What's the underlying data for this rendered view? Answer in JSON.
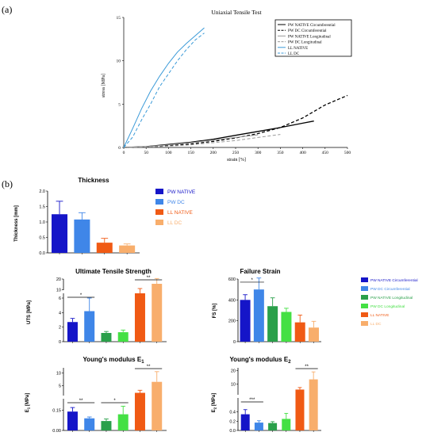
{
  "panel_labels": {
    "a": "(a)",
    "b": "(b)"
  },
  "colors": {
    "pw_native": "#1515c8",
    "pw_dc": "#3f86e8",
    "pw_native_long": "#2aa04a",
    "pw_dc_long": "#44e044",
    "ll_native": "#f05a14",
    "ll_dc": "#f8ae6c",
    "ll_curve": "#3a9ad8",
    "pw_curve": "#000000",
    "long_curve": "#9a9a9a"
  },
  "chart_data": [
    {
      "id": "tensile",
      "type": "line",
      "title": "Uniaxial Tensile Test",
      "xlabel": "strain [%]",
      "ylabel": "stress [MPa]",
      "xlim": [
        0,
        500
      ],
      "ylim": [
        0,
        15
      ],
      "xticks": [
        0,
        50,
        100,
        150,
        200,
        250,
        300,
        350,
        400,
        450,
        500
      ],
      "yticks": [
        0,
        5,
        10,
        15
      ],
      "legend_position": "top-right",
      "series": [
        {
          "name": "PW NATIVE Circumferential",
          "style": "solid",
          "color_key": "pw_curve",
          "x": [
            0,
            50,
            100,
            150,
            200,
            250,
            300,
            350,
            400,
            425
          ],
          "y": [
            0,
            0.1,
            0.35,
            0.6,
            0.95,
            1.4,
            1.85,
            2.3,
            2.8,
            3.05
          ]
        },
        {
          "name": "PW DC Circumferential",
          "style": "dashed",
          "color_key": "pw_curve",
          "x": [
            0,
            50,
            100,
            150,
            200,
            250,
            300,
            350,
            400,
            450,
            500
          ],
          "y": [
            0,
            0.05,
            0.2,
            0.4,
            0.7,
            1.1,
            1.6,
            2.3,
            3.4,
            4.9,
            6.0
          ]
        },
        {
          "name": "PW NATIVE Longitudinal",
          "style": "solid",
          "color_key": "long_curve",
          "x": [
            0,
            50,
            100,
            150,
            200,
            250,
            300
          ],
          "y": [
            0,
            0.1,
            0.3,
            0.55,
            0.85,
            1.15,
            1.45
          ]
        },
        {
          "name": "PW DC Longitudinal",
          "style": "dashed",
          "color_key": "long_curve",
          "x": [
            0,
            50,
            100,
            150,
            200,
            250,
            300,
            350
          ],
          "y": [
            0,
            0.05,
            0.15,
            0.3,
            0.55,
            0.8,
            1.15,
            1.5
          ]
        },
        {
          "name": "LL NATIVE",
          "style": "solid",
          "color_key": "ll_curve",
          "x": [
            0,
            20,
            40,
            60,
            80,
            100,
            120,
            140,
            160,
            180
          ],
          "y": [
            0,
            2.2,
            4.5,
            6.5,
            8.2,
            9.7,
            11.0,
            12.0,
            12.9,
            13.8
          ]
        },
        {
          "name": "LL DC",
          "style": "dashed",
          "color_key": "ll_curve",
          "x": [
            0,
            20,
            40,
            60,
            80,
            100,
            120,
            140,
            160,
            180
          ],
          "y": [
            0,
            1.2,
            3.2,
            5.0,
            7.0,
            8.5,
            10.0,
            11.3,
            12.4,
            13.2
          ]
        }
      ]
    },
    {
      "id": "thickness",
      "type": "bar",
      "title": "Thickness",
      "ylabel": "Thickness [mm]",
      "ylim": [
        0,
        2.0
      ],
      "yticks": [
        "0.0",
        "0.5",
        "1.0",
        "1.5",
        "2.0"
      ],
      "legend": [
        {
          "label": "PW NATIVE",
          "color_key": "pw_native"
        },
        {
          "label": "PW DC",
          "color_key": "pw_dc"
        },
        {
          "label": "LL NATIVE",
          "color_key": "ll_native"
        },
        {
          "label": "LL DC",
          "color_key": "ll_dc"
        }
      ],
      "bars": [
        {
          "color_key": "pw_native",
          "value": 1.25,
          "err": 0.42
        },
        {
          "color_key": "pw_dc",
          "value": 1.08,
          "err": 0.22
        },
        {
          "color_key": "ll_native",
          "value": 0.33,
          "err": 0.14
        },
        {
          "color_key": "ll_dc",
          "value": 0.24,
          "err": 0.05
        }
      ]
    },
    {
      "id": "uts",
      "type": "bar",
      "title": "Ultimate Tensile Strength",
      "ylabel": "UTS [MPa]",
      "broken_axis": true,
      "lower_range": [
        0,
        6
      ],
      "upper_range": [
        8,
        20
      ],
      "lower_ticks": [
        "0",
        "2",
        "4",
        "6"
      ],
      "upper_ticks": [
        "10",
        "20"
      ],
      "bars": [
        {
          "color_key": "pw_native",
          "value": 2.7,
          "err": 0.5
        },
        {
          "color_key": "pw_dc",
          "value": 4.2,
          "err": 1.8
        },
        {
          "color_key": "pw_native_long",
          "value": 1.2,
          "err": 0.2
        },
        {
          "color_key": "pw_dc_long",
          "value": 1.3,
          "err": 0.3
        },
        {
          "color_key": "ll_native",
          "value": 6.5,
          "err": 4.5
        },
        {
          "color_key": "ll_dc",
          "value": 15.5,
          "err": 5.0
        }
      ],
      "significance": [
        {
          "from": 0,
          "to": 1,
          "label": "*",
          "level": "low"
        },
        {
          "from": 4,
          "to": 5,
          "label": "**",
          "level": "high"
        }
      ]
    },
    {
      "id": "failure_strain",
      "type": "bar",
      "title": "Failure Strain",
      "ylabel": "FS [%]",
      "ylim": [
        0,
        600
      ],
      "yticks": [
        "0",
        "200",
        "400",
        "600"
      ],
      "legend": [
        {
          "label": "PW NATIVE Circumferential",
          "color_key": "pw_native"
        },
        {
          "label": "PW DC Circumferential",
          "color_key": "pw_dc"
        },
        {
          "label": "PW NATIVE Longitudinal",
          "color_key": "pw_native_long"
        },
        {
          "label": "PW DC Longitudinal",
          "color_key": "pw_dc_long"
        },
        {
          "label": "LL NATIVE",
          "color_key": "ll_native"
        },
        {
          "label": "LL DC",
          "color_key": "ll_dc"
        }
      ],
      "bars": [
        {
          "color_key": "pw_native",
          "value": 400,
          "err": 50
        },
        {
          "color_key": "pw_dc",
          "value": 500,
          "err": 110
        },
        {
          "color_key": "pw_native_long",
          "value": 340,
          "err": 80
        },
        {
          "color_key": "pw_dc_long",
          "value": 285,
          "err": 35
        },
        {
          "color_key": "ll_native",
          "value": 185,
          "err": 70
        },
        {
          "color_key": "ll_dc",
          "value": 135,
          "err": 60
        }
      ],
      "significance": [
        {
          "from": 0,
          "to": 1,
          "label": "*",
          "y": 570
        }
      ]
    },
    {
      "id": "youngs_e1",
      "type": "bar",
      "title": "Young's modulus  E",
      "title_sub": "1",
      "ylabel": "E",
      "ylabel_sub": "1",
      "ylabel_unit": " [MPa]",
      "broken_axis": true,
      "lower_range": [
        0,
        0.2
      ],
      "upper_range": [
        0.5,
        12
      ],
      "lower_ticks": [
        "0.00",
        "0.15"
      ],
      "upper_ticks": [
        "5",
        "10"
      ],
      "bars": [
        {
          "color_key": "pw_native",
          "value": 0.14,
          "err": 0.03
        },
        {
          "color_key": "pw_dc",
          "value": 0.09,
          "err": 0.01
        },
        {
          "color_key": "pw_native_long",
          "value": 0.07,
          "err": 0.015
        },
        {
          "color_key": "pw_dc_long",
          "value": 0.12,
          "err": 0.06
        },
        {
          "color_key": "ll_native",
          "value": 2.2,
          "err": 1.0
        },
        {
          "color_key": "ll_dc",
          "value": 6.5,
          "err": 4.0
        }
      ],
      "significance": [
        {
          "from": 0,
          "to": 1,
          "label": "**",
          "level": "low"
        },
        {
          "from": 2,
          "to": 3,
          "label": "*",
          "level": "low"
        },
        {
          "from": 4,
          "to": 5,
          "label": "**",
          "level": "high"
        }
      ]
    },
    {
      "id": "youngs_e2",
      "type": "bar",
      "title": "Young's modulus  E",
      "title_sub": "2",
      "ylabel": "E",
      "ylabel_sub": "2",
      "ylabel_unit": " [MPa]",
      "broken_axis": true,
      "lower_range": [
        0,
        0.6
      ],
      "upper_range": [
        1,
        22
      ],
      "lower_ticks": [
        "0.0",
        "0.2",
        "0.4"
      ],
      "upper_ticks": [
        "10",
        "20"
      ],
      "bars": [
        {
          "color_key": "pw_native",
          "value": 0.35,
          "err": 0.1
        },
        {
          "color_key": "pw_dc",
          "value": 0.17,
          "err": 0.04
        },
        {
          "color_key": "pw_native_long",
          "value": 0.16,
          "err": 0.03
        },
        {
          "color_key": "pw_dc_long",
          "value": 0.25,
          "err": 0.12
        },
        {
          "color_key": "ll_native",
          "value": 6.0,
          "err": 1.5
        },
        {
          "color_key": "ll_dc",
          "value": 13.5,
          "err": 5.5
        }
      ],
      "significance": [
        {
          "from": 0,
          "to": 1,
          "label": "***",
          "level": "low"
        },
        {
          "from": 4,
          "to": 5,
          "label": "**",
          "level": "high"
        }
      ]
    }
  ]
}
